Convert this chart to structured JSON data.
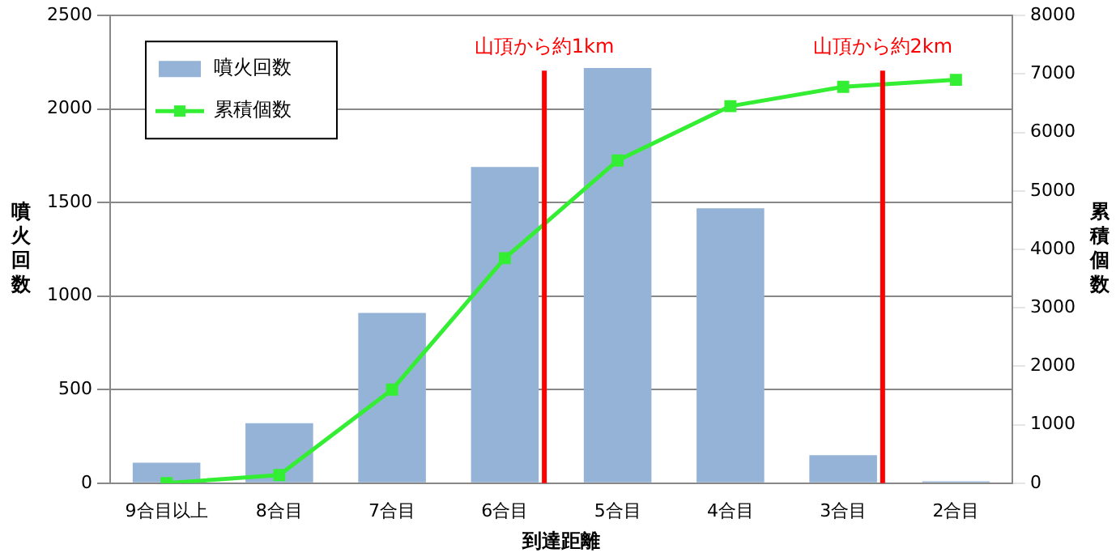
{
  "chart_data": {
    "type": "bar",
    "xlabel": "到達距離",
    "ylabel": "噴火回数",
    "y2label": "累積個数",
    "categories": [
      "9合目以上",
      "8合目",
      "7合目",
      "6合目",
      "5合目",
      "4合目",
      "3合目",
      "2合目"
    ],
    "series": [
      {
        "name": "噴火回数",
        "color": "#95b3d7",
        "values": [
          110,
          320,
          910,
          1690,
          2220,
          1470,
          150,
          10
        ]
      },
      {
        "name": "累積個数",
        "type": "line",
        "axis": "y2",
        "color": "#33ee33",
        "marker": "square",
        "values": [
          0,
          140,
          1600,
          3850,
          5520,
          6450,
          6780,
          6900
        ]
      }
    ],
    "ylim": [
      0,
      2500
    ],
    "yticks": [
      0,
      500,
      1000,
      1500,
      2000,
      2500
    ],
    "y2lim": [
      0,
      8000
    ],
    "y2ticks": [
      0,
      1000,
      2000,
      3000,
      4000,
      5000,
      6000,
      7000,
      8000
    ],
    "ref_lines": [
      {
        "axis": "x",
        "value": "6合目",
        "label": "山頂から約1km",
        "color": "#ff0000"
      },
      {
        "axis": "x",
        "value": "3合目",
        "label": "山頂から約2km",
        "color": "#ff0000"
      }
    ],
    "grid": "y",
    "legend": "top left"
  }
}
